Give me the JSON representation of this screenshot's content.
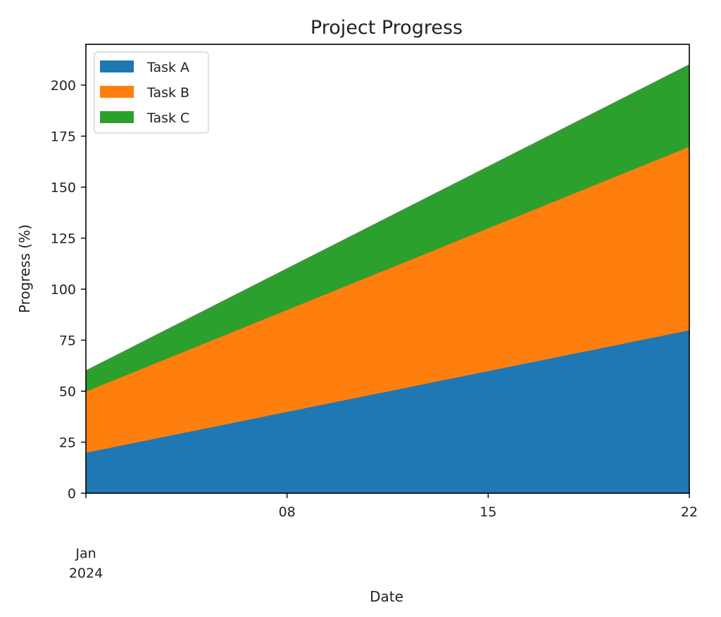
{
  "chart_data": {
    "type": "area",
    "stacked": true,
    "title": "Project Progress",
    "xlabel": "Date",
    "ylabel": "Progress (%)",
    "x_start": "2024-01-01",
    "x_end": "2024-01-22",
    "x_tick_labels": [
      {
        "day": 1,
        "label": "Jan\n2024"
      },
      {
        "day": 8,
        "label": "08"
      },
      {
        "day": 15,
        "label": "15"
      },
      {
        "day": 22,
        "label": "22"
      }
    ],
    "ylim": [
      0,
      220
    ],
    "y_ticks": [
      0,
      25,
      50,
      75,
      100,
      125,
      150,
      175,
      200
    ],
    "grid": false,
    "legend_position": "upper left",
    "series": [
      {
        "name": "Task A",
        "color": "#1f77b4",
        "start": 20,
        "end": 80
      },
      {
        "name": "Task B",
        "color": "#ff7f0e",
        "start": 30,
        "end": 90
      },
      {
        "name": "Task C",
        "color": "#2ca02c",
        "start": 10,
        "end": 40
      }
    ]
  }
}
